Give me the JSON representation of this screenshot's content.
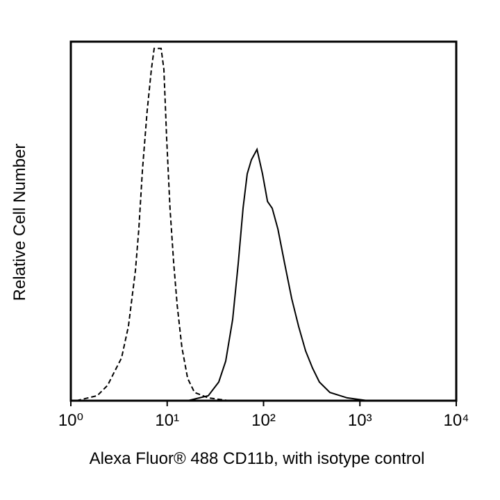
{
  "chart_data": {
    "type": "line",
    "xlabel": "Alexa Fluor® 488 CD11b, with isotype control",
    "ylabel": "Relative Cell Number",
    "xscale": "log",
    "xlim": [
      1,
      10000
    ],
    "ylim": [
      0,
      100
    ],
    "xticks": [
      {
        "value": 1,
        "label": "10⁰"
      },
      {
        "value": 10,
        "label": "10¹"
      },
      {
        "value": 100,
        "label": "10²"
      },
      {
        "value": 1000,
        "label": "10³"
      },
      {
        "value": 10000,
        "label": "10⁴"
      }
    ],
    "series": [
      {
        "color": "#000000",
        "dashed": true,
        "x": [
          1.14,
          1.88,
          2.41,
          2.84,
          3.36,
          3.96,
          4.68,
          5.08,
          5.53,
          6.2,
          6.86,
          7.33,
          8.65,
          9.24,
          9.88,
          10.7,
          11.7,
          12.7,
          14.2,
          16.3,
          19.2,
          26.7,
          44
        ],
        "values": [
          0,
          1.4,
          4.3,
          8.1,
          11.9,
          20.7,
          36.2,
          47.8,
          64.2,
          80.7,
          92.3,
          98.1,
          98.1,
          92.3,
          73,
          53.6,
          38.1,
          26.5,
          14.9,
          6.2,
          2.3,
          0.8,
          0
        ]
      },
      {
        "color": "#000000",
        "dashed": false,
        "x": [
          16.3,
          26.7,
          34.3,
          40.5,
          47.8,
          54.6,
          61.3,
          67.7,
          74.8,
          85.5,
          97.5,
          110,
          123,
          141,
          166,
          196,
          231,
          273,
          322,
          380,
          488,
          738,
          1216
        ],
        "values": [
          0,
          1.4,
          5.2,
          11,
          22.6,
          38.1,
          53.6,
          63.2,
          67.1,
          70,
          63.2,
          55.5,
          53.6,
          47.8,
          38.1,
          28.4,
          20.7,
          13.9,
          9.1,
          5.2,
          2.3,
          0.8,
          0
        ]
      }
    ]
  }
}
